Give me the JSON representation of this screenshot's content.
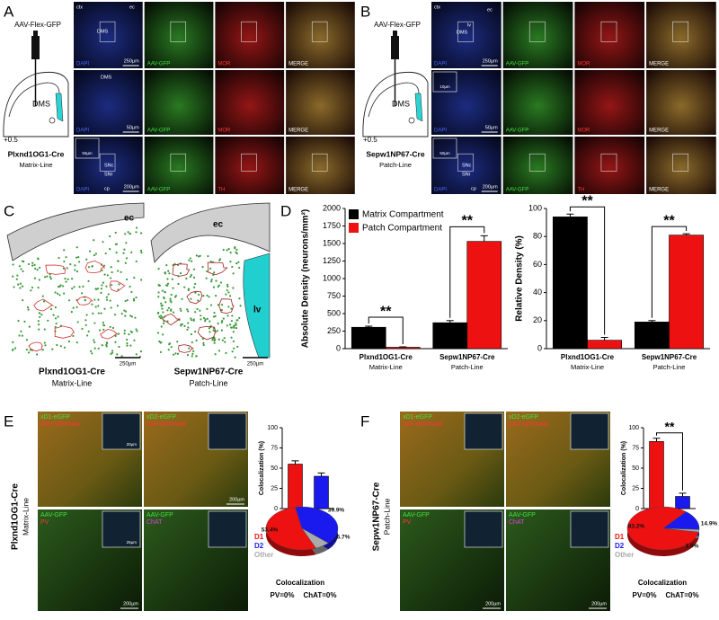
{
  "panel_letters": [
    "A",
    "B",
    "C",
    "D",
    "E",
    "F"
  ],
  "panel_a": {
    "virus": "AAV-Flex-GFP",
    "region": "DMS",
    "bregma": "+0.5",
    "line": "Plxnd1OG1-Cre",
    "subline": "Matrix-Line",
    "stain_colors": [
      "#4a66ff",
      "#44e044",
      "#ff3434",
      "#ffffff"
    ],
    "rows": [
      [
        {
          "stain": "DAPI",
          "scale": "250µm",
          "labels": [
            "ctx",
            "ec",
            "DMS"
          ]
        },
        {
          "stain": "AAV-GFP"
        },
        {
          "stain": "MOR"
        },
        {
          "stain": "MERGE"
        }
      ],
      [
        {
          "stain": "DAPI",
          "scale": "50µm",
          "labels": [
            "DMS"
          ]
        },
        {
          "stain": "AAV-GFP"
        },
        {
          "stain": "MOR"
        },
        {
          "stain": "MERGE"
        }
      ],
      [
        {
          "stain": "DAPI",
          "scale": "200µm",
          "labels": [
            "SNc",
            "SNr",
            "cp"
          ],
          "inset_scale": "50µm"
        },
        {
          "stain": "AAV-GFP"
        },
        {
          "stain": "TH"
        },
        {
          "stain": "MERGE"
        }
      ]
    ]
  },
  "panel_b": {
    "virus": "AAV-Flex-GFP",
    "region": "DMS",
    "bregma": "+0.5",
    "line": "Sepw1NP67-Cre",
    "subline": "Patch-Line",
    "stain_colors": [
      "#4a66ff",
      "#44e044",
      "#ff3434",
      "#ffffff"
    ],
    "rows": [
      [
        {
          "stain": "DAPI",
          "scale": "250µm",
          "labels": [
            "ctx",
            "ec",
            "lv",
            "DMS"
          ]
        },
        {
          "stain": "AAV-GFP"
        },
        {
          "stain": "MOR"
        },
        {
          "stain": "MERGE"
        }
      ],
      [
        {
          "stain": "DAPI",
          "scale": "50µm",
          "labels": [],
          "inset_scale": "10µm"
        },
        {
          "stain": "AAV-GFP"
        },
        {
          "stain": "MOR"
        },
        {
          "stain": "MERGE"
        }
      ],
      [
        {
          "stain": "DAPI",
          "scale": "200µm",
          "labels": [
            "SNc",
            "SNr",
            "cp"
          ],
          "inset_scale": "50µm"
        },
        {
          "stain": "AAV-GFP"
        },
        {
          "stain": "TH"
        },
        {
          "stain": "MERGE"
        }
      ]
    ]
  },
  "panel_c": {
    "left": {
      "labels": [
        "ec"
      ],
      "scale": "250µm",
      "line": "Plxnd1OG1-Cre",
      "subline": "Matrix-Line"
    },
    "right": {
      "labels": [
        "ec",
        "lv"
      ],
      "scale": "250µm",
      "line": "Sepw1NP67-Cre",
      "subline": "Patch-Line"
    }
  },
  "panel_e": {
    "line": "Plxnd1OG1-Cre",
    "subline": "Matrix-Line",
    "images": [
      {
        "labels": [
          {
            "text": "xD1-eGFP",
            "color": "#44e044"
          },
          {
            "text": "AAV-tdTomato",
            "color": "#ff3434"
          }
        ],
        "inset_scale": "20µm"
      },
      {
        "labels": [
          {
            "text": "xD2-eGFP",
            "color": "#44e044"
          },
          {
            "text": "AAV-tdTomato",
            "color": "#ff3434"
          }
        ],
        "scale": "200µm"
      },
      {
        "labels": [
          {
            "text": "AAV-GFP",
            "color": "#44e044"
          },
          {
            "text": "PV",
            "color": "#ff3434"
          }
        ],
        "inset_scale": "25µm",
        "scale": "200µm"
      },
      {
        "labels": [
          {
            "text": "AAV-GFP",
            "color": "#44e044"
          },
          {
            "text": "ChAT",
            "color": "#e040e0"
          }
        ]
      }
    ],
    "coloc_title": "Colocalization",
    "coloc": [
      "PV=0%",
      "ChAT=0%"
    ]
  },
  "panel_f": {
    "line": "Sepw1NP67-Cre",
    "subline": "Patch-Line",
    "images": [
      {
        "labels": [
          {
            "text": "xD1-eGFP",
            "color": "#44e044"
          },
          {
            "text": "AAV-tdTomato",
            "color": "#ff3434"
          }
        ]
      },
      {
        "labels": [
          {
            "text": "xD2-eGFP",
            "color": "#44e044"
          },
          {
            "text": "AAV-tdTomato",
            "color": "#ff3434"
          }
        ]
      },
      {
        "labels": [
          {
            "text": "AAV-GFP",
            "color": "#44e044"
          },
          {
            "text": "PV",
            "color": "#ff3434"
          }
        ],
        "scale": "200µm"
      },
      {
        "labels": [
          {
            "text": "AAV-GFP",
            "color": "#44e044"
          },
          {
            "text": "ChAT",
            "color": "#e040e0"
          }
        ],
        "scale": "200µm"
      }
    ],
    "coloc_title": "Colocalization",
    "coloc": [
      "PV=0%",
      "ChAT=0%"
    ]
  },
  "chart_data": [
    {
      "type": "bar",
      "ylabel": "Absolute Density (neurons/mm²)",
      "categories": [
        "Plxnd1OG1-Cre",
        "Sepw1NP67-Cre"
      ],
      "sublabels": [
        "Matrix-Line",
        "Patch-Line"
      ],
      "series": [
        {
          "name": "Matrix Compartment",
          "color": "#000000",
          "values": [
            305,
            370
          ],
          "errors": [
            15,
            30
          ]
        },
        {
          "name": "Patch Compartment",
          "color": "#ee1111",
          "values": [
            20,
            1530
          ],
          "errors": [
            5,
            80
          ]
        }
      ],
      "ylim": [
        0,
        2000
      ],
      "yticks": [
        0,
        250,
        500,
        750,
        1000,
        1250,
        1500,
        1750,
        2000
      ],
      "annotations": [
        "**",
        "**"
      ],
      "legend": "upper left"
    },
    {
      "type": "bar",
      "ylabel": "Relative Density (%)",
      "categories": [
        "Plxnd1OG1-Cre",
        "Sepw1NP67-Cre"
      ],
      "sublabels": [
        "Matrix-Line",
        "Patch-Line"
      ],
      "series": [
        {
          "name": "Matrix Compartment",
          "color": "#000000",
          "values": [
            94,
            19
          ],
          "errors": [
            2,
            1
          ]
        },
        {
          "name": "Patch Compartment",
          "color": "#ee1111",
          "values": [
            6,
            81
          ],
          "errors": [
            2,
            1
          ]
        }
      ],
      "ylim": [
        0,
        100
      ],
      "yticks": [
        0,
        20,
        40,
        60,
        80,
        100
      ],
      "annotations": [
        "**",
        "**"
      ]
    },
    {
      "type": "bar",
      "ylabel": "Colocalization (%)",
      "categories": [
        "D1",
        "D2"
      ],
      "values": [
        55,
        40
      ],
      "errors": [
        4,
        4
      ],
      "colors": [
        "#ee1111",
        "#1a1aee"
      ],
      "ylim": [
        0,
        100
      ],
      "yticks": [
        0,
        25,
        50,
        75,
        100
      ]
    },
    {
      "type": "pie",
      "categories": [
        "D1",
        "D2",
        "Other"
      ],
      "values": [
        53.4,
        39.9,
        6.7
      ],
      "value_labels": [
        "53.4%",
        "39.9%",
        "6.7%"
      ],
      "colors": [
        "#ee1111",
        "#1a1aee",
        "#aaaaaa"
      ]
    },
    {
      "type": "bar",
      "ylabel": "Colocalization (%)",
      "categories": [
        "D1",
        "D2"
      ],
      "values": [
        83,
        15
      ],
      "errors": [
        4,
        4
      ],
      "colors": [
        "#ee1111",
        "#1a1aee"
      ],
      "ylim": [
        0,
        100
      ],
      "yticks": [
        0,
        25,
        50,
        75,
        100
      ],
      "annotations": [
        "**"
      ]
    },
    {
      "type": "pie",
      "categories": [
        "D1",
        "D2",
        "Other"
      ],
      "values": [
        83.2,
        14.9,
        1.9
      ],
      "value_labels": [
        "83.2%",
        "14.9%",
        "1.9%"
      ],
      "colors": [
        "#ee1111",
        "#1a1aee",
        "#aaaaaa"
      ]
    }
  ]
}
